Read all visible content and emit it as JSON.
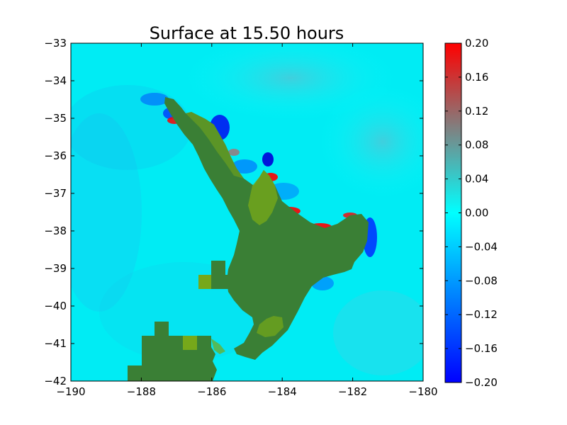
{
  "chart_data": {
    "type": "heatmap",
    "title": "Surface at 15.50 hours",
    "xlim": [
      -190,
      -180
    ],
    "ylim": [
      -42,
      -33
    ],
    "x_ticks": [
      -190,
      -188,
      -186,
      -184,
      -182,
      -180
    ],
    "y_ticks": [
      -33,
      -34,
      -35,
      -36,
      -37,
      -38,
      -39,
      -40,
      -41,
      -42
    ],
    "x_tick_labels": [
      "−190",
      "−188",
      "−186",
      "−184",
      "−182",
      "−180"
    ],
    "y_tick_labels": [
      "−33",
      "−34",
      "−35",
      "−36",
      "−37",
      "−38",
      "−39",
      "−40",
      "−41",
      "−42"
    ],
    "colorbar": {
      "min": -0.2,
      "max": 0.2,
      "ticks": [
        0.2,
        0.16,
        0.12,
        0.08,
        0.04,
        0.0,
        -0.04,
        -0.08,
        -0.12,
        -0.16,
        -0.2
      ],
      "tick_labels": [
        "0.20",
        "0.16",
        "0.12",
        "0.08",
        "0.04",
        "0.00",
        "−0.04",
        "−0.08",
        "−0.12",
        "−0.16",
        "−0.20"
      ],
      "colors": [
        "#0000ff",
        "#00a0ff",
        "#00ffff",
        "#808080",
        "#ff0000"
      ]
    },
    "background_value": 0.0,
    "land_color": "#3a7f35",
    "shallow_color": "#76a81a",
    "grid": false
  }
}
